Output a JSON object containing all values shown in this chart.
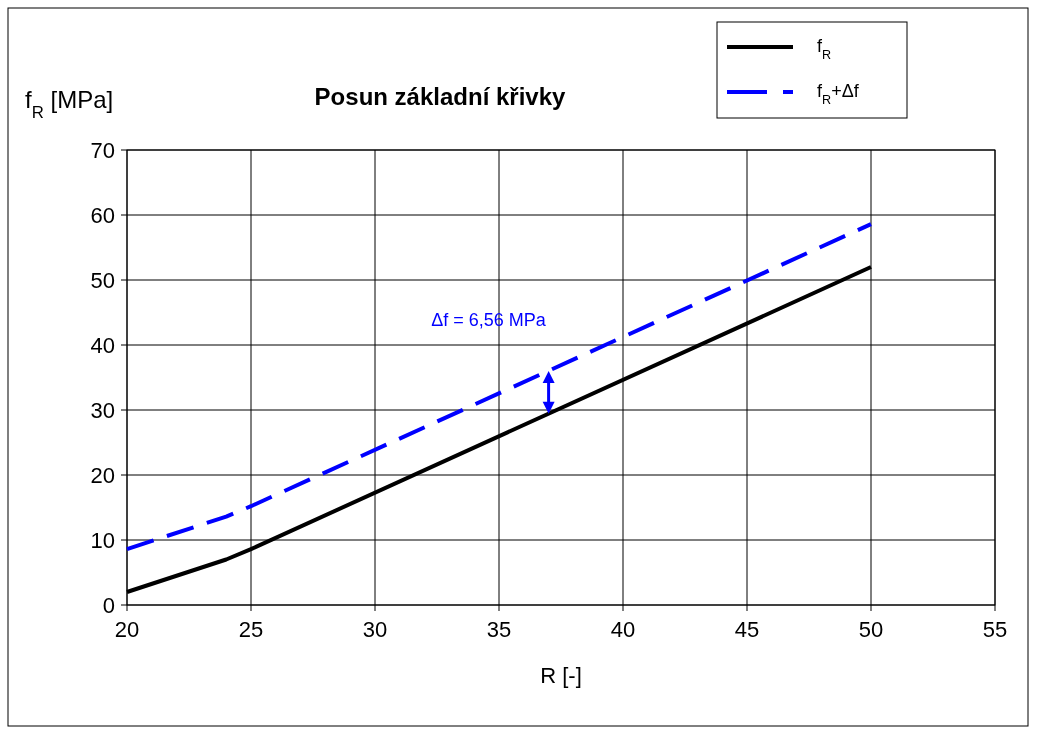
{
  "chart_data": {
    "type": "line",
    "title": "Posun základní křivky",
    "xlabel": "R [-]",
    "ylabel": "f$_{R}$ [MPa]",
    "xlim": [
      20,
      55
    ],
    "xticks": [
      20,
      25,
      30,
      35,
      40,
      45,
      50,
      55
    ],
    "ylim": [
      0,
      70
    ],
    "yticks": [
      0,
      10,
      20,
      30,
      40,
      50,
      60,
      70
    ],
    "grid": true,
    "legend": "top right",
    "x": [
      20,
      24,
      25,
      50
    ],
    "series": [
      {
        "name": "f$_{R}$",
        "color": "#000000",
        "values": [
          2,
          7,
          8.6,
          52
        ],
        "line_style": "solid"
      },
      {
        "name": "f$_{R}$+Δf",
        "color": "#0000ff",
        "values": [
          8.6,
          13.6,
          15.2,
          58.6
        ],
        "line_style": "dashed"
      }
    ],
    "annotations": [
      {
        "text": "Δf = 6,56 MPa",
        "x": 37,
        "y": 36
      }
    ]
  }
}
